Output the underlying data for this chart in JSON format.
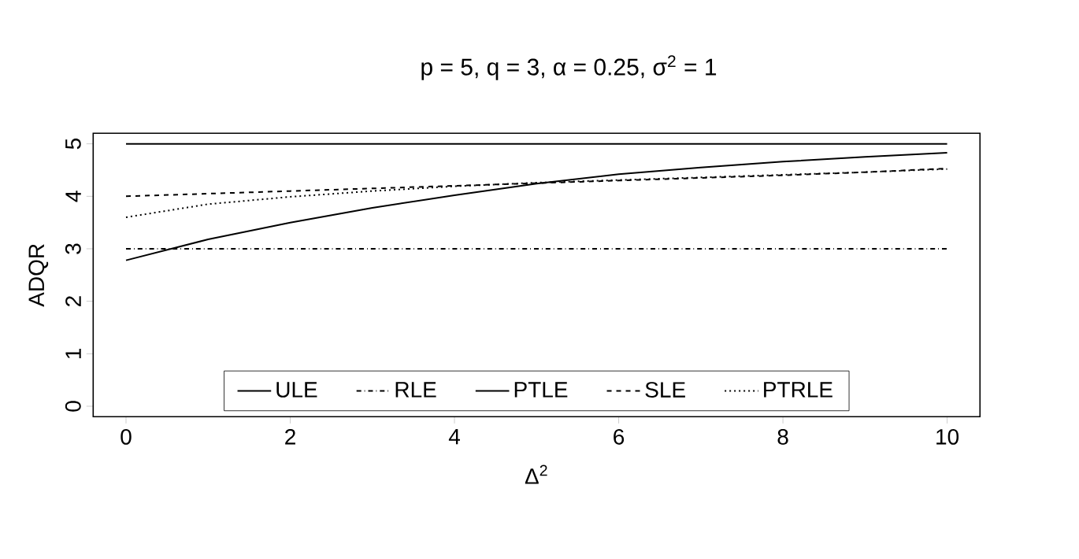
{
  "chart_data": {
    "type": "line",
    "title": "p = 5, q = 3, α = 0.25, σ$^{2}$ = 1",
    "xlabel": "Δ$^{2}$",
    "ylabel": "ADQR",
    "x": [
      0,
      1,
      2,
      3,
      4,
      5,
      6,
      7,
      8,
      9,
      10
    ],
    "series": [
      {
        "name": "ULE",
        "color": "#000000",
        "line_style": "solid",
        "values": [
          5,
          5,
          5,
          5,
          5,
          5,
          5,
          5,
          5,
          5,
          5
        ]
      },
      {
        "name": "RLE",
        "color": "#000000",
        "line_style": "dashdot",
        "values": [
          3,
          3,
          3,
          3,
          3,
          3,
          3,
          3,
          3,
          3,
          3
        ]
      },
      {
        "name": "PTLE",
        "color": "#000000",
        "line_style": "solid",
        "values": [
          2.78,
          3.18,
          3.5,
          3.78,
          4.02,
          4.24,
          4.42,
          4.55,
          4.66,
          4.75,
          4.83
        ]
      },
      {
        "name": "SLE",
        "color": "#000000",
        "line_style": "dashed",
        "values": [
          4.0,
          4.05,
          4.1,
          4.15,
          4.2,
          4.25,
          4.3,
          4.35,
          4.4,
          4.46,
          4.53
        ]
      },
      {
        "name": "PTRLE",
        "color": "#000000",
        "line_style": "dotted",
        "values": [
          3.6,
          3.85,
          3.99,
          4.1,
          4.19,
          4.26,
          4.31,
          4.36,
          4.41,
          4.46,
          4.52
        ]
      }
    ],
    "xlim": [
      -0.4,
      10.4
    ],
    "ylim": [
      -0.2,
      5.2
    ],
    "xticks": [
      0,
      2,
      4,
      6,
      8,
      10
    ],
    "yticks": [
      0,
      1,
      2,
      3,
      4,
      5
    ],
    "grid": false,
    "legend": "bottom",
    "marker": "none"
  }
}
